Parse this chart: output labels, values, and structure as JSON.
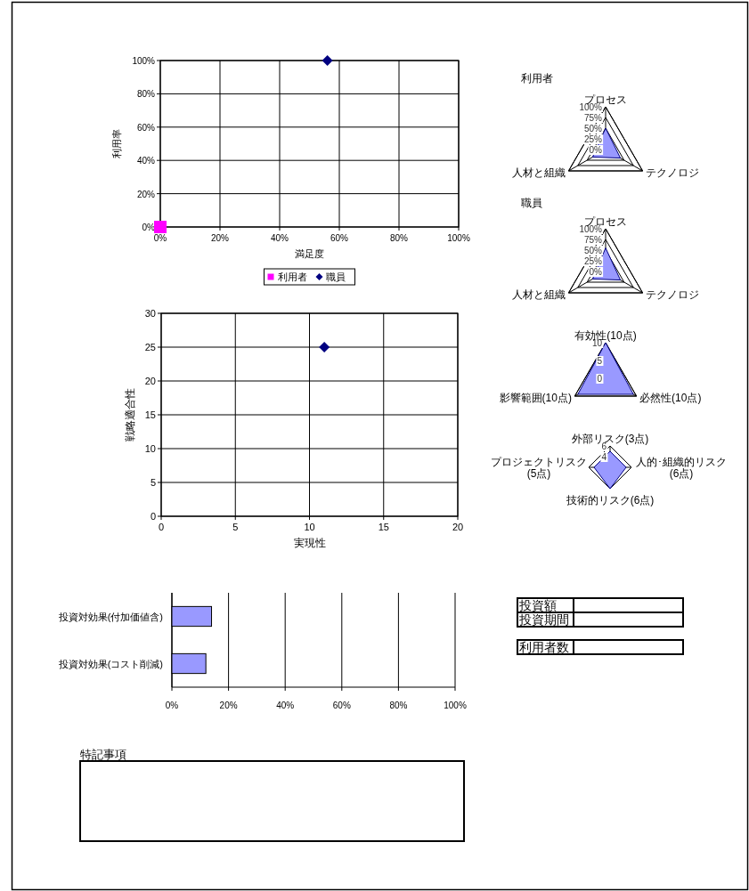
{
  "chart_data": [
    {
      "type": "scatter",
      "xlabel": "満足度",
      "ylabel": "利用率",
      "xlim": [
        0,
        100
      ],
      "ylim": [
        0,
        100
      ],
      "xticks": [
        {
          "value": 0,
          "label": "0%"
        },
        {
          "value": 20,
          "label": "20%"
        },
        {
          "value": 40,
          "label": "40%"
        },
        {
          "value": 60,
          "label": "60%"
        },
        {
          "value": 80,
          "label": "80%"
        },
        {
          "value": 100,
          "label": "100%"
        }
      ],
      "yticks": [
        {
          "value": 0,
          "label": "0%"
        },
        {
          "value": 20,
          "label": "20%"
        },
        {
          "value": 40,
          "label": "40%"
        },
        {
          "value": 60,
          "label": "60%"
        },
        {
          "value": 80,
          "label": "80%"
        },
        {
          "value": 100,
          "label": "100%"
        }
      ],
      "grid": true,
      "legend": "bottom",
      "series": [
        {
          "name": "利用者",
          "color": "#ff00ff",
          "marker": "square",
          "x": [
            0
          ],
          "values": [
            0
          ]
        },
        {
          "name": "職員",
          "color": "#000080",
          "marker": "diamond",
          "x": [
            56
          ],
          "values": [
            100
          ]
        }
      ]
    },
    {
      "type": "radar",
      "title": "利用者",
      "categories": [
        "プロセス",
        "テクノロジ",
        "人材と組織"
      ],
      "ylim": [
        0,
        100
      ],
      "yticks": [
        {
          "value": 0,
          "label": "0%"
        },
        {
          "value": 25,
          "label": "25%"
        },
        {
          "value": 50,
          "label": "50%"
        },
        {
          "value": 75,
          "label": "75%"
        },
        {
          "value": 100,
          "label": "100%"
        }
      ],
      "series": [
        {
          "color": "#9999ff",
          "values": [
            50,
            40,
            35
          ]
        }
      ]
    },
    {
      "type": "radar",
      "title": "職員",
      "categories": [
        "プロセス",
        "テクノロジ",
        "人材と組織"
      ],
      "ylim": [
        0,
        100
      ],
      "yticks": [
        {
          "value": 0,
          "label": "0%"
        },
        {
          "value": 25,
          "label": "25%"
        },
        {
          "value": 50,
          "label": "50%"
        },
        {
          "value": 75,
          "label": "75%"
        },
        {
          "value": 100,
          "label": "100%"
        }
      ],
      "series": [
        {
          "color": "#9999ff",
          "values": [
            55,
            40,
            35
          ]
        }
      ]
    },
    {
      "type": "radar",
      "categories": [
        "有効性(10点)",
        "必然性(10点)",
        "影響範囲(10点)"
      ],
      "ylim": [
        0,
        10
      ],
      "yticks": [
        0,
        5,
        10
      ],
      "series": [
        {
          "color": "#9999ff",
          "values": [
            10,
            9,
            9
          ]
        }
      ]
    },
    {
      "type": "radar",
      "categories": [
        "外部リスク(3点)",
        "人的･組織的リスク(6点)",
        "技術的リスク(6点)",
        "プロジェクトリスク(5点)"
      ],
      "ylim": [
        2,
        6
      ],
      "yticks": [
        4,
        6
      ],
      "series": [
        {
          "color": "#9999ff",
          "values": [
            5,
            5,
            6,
            5
          ]
        }
      ]
    },
    {
      "type": "scatter",
      "xlabel": "実現性",
      "ylabel": "戦略適合性",
      "xlim": [
        0,
        20
      ],
      "ylim": [
        0,
        30
      ],
      "xticks": [
        0,
        5,
        10,
        15,
        20
      ],
      "yticks": [
        0,
        5,
        10,
        15,
        20,
        25,
        30
      ],
      "grid": true,
      "series": [
        {
          "color": "#000080",
          "marker": "diamond",
          "x": [
            11
          ],
          "values": [
            25
          ]
        }
      ]
    },
    {
      "type": "bar",
      "orientation": "horizontal",
      "categories": [
        "投資対効果(付加価値含)",
        "投資対効果(コスト削減)"
      ],
      "values": [
        14,
        12
      ],
      "color": "#9999ff",
      "xlim": [
        0,
        100
      ],
      "xticks": [
        {
          "value": 0,
          "label": "0%"
        },
        {
          "value": 20,
          "label": "20%"
        },
        {
          "value": 40,
          "label": "40%"
        },
        {
          "value": 60,
          "label": "60%"
        },
        {
          "value": 80,
          "label": "80%"
        },
        {
          "value": 100,
          "label": "100%"
        }
      ],
      "grid": "x"
    },
    {
      "type": "other",
      "annotations": [
        "投資額",
        "投資期間",
        "利用者数"
      ]
    },
    {
      "type": "other",
      "title": "特記事項"
    }
  ]
}
